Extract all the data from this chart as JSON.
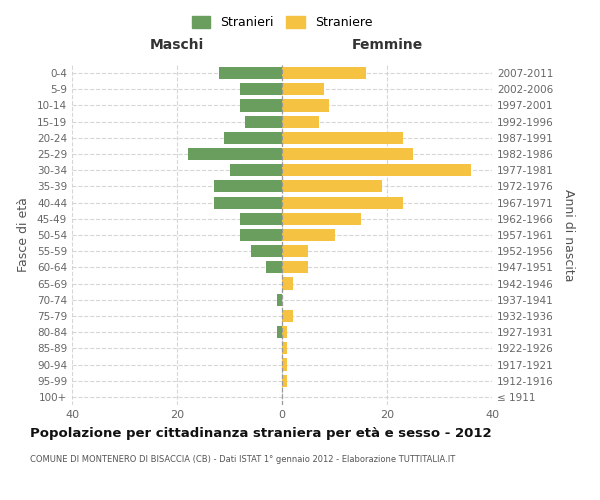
{
  "age_groups": [
    "100+",
    "95-99",
    "90-94",
    "85-89",
    "80-84",
    "75-79",
    "70-74",
    "65-69",
    "60-64",
    "55-59",
    "50-54",
    "45-49",
    "40-44",
    "35-39",
    "30-34",
    "25-29",
    "20-24",
    "15-19",
    "10-14",
    "5-9",
    "0-4"
  ],
  "birth_years": [
    "≤ 1911",
    "1912-1916",
    "1917-1921",
    "1922-1926",
    "1927-1931",
    "1932-1936",
    "1937-1941",
    "1942-1946",
    "1947-1951",
    "1952-1956",
    "1957-1961",
    "1962-1966",
    "1967-1971",
    "1972-1976",
    "1977-1981",
    "1982-1986",
    "1987-1991",
    "1992-1996",
    "1997-2001",
    "2002-2006",
    "2007-2011"
  ],
  "maschi": [
    0,
    0,
    0,
    0,
    1,
    0,
    1,
    0,
    3,
    6,
    8,
    8,
    13,
    13,
    10,
    18,
    11,
    7,
    8,
    8,
    12
  ],
  "femmine": [
    0,
    1,
    1,
    1,
    1,
    2,
    0,
    2,
    5,
    5,
    10,
    15,
    23,
    19,
    36,
    25,
    23,
    7,
    9,
    8,
    16
  ],
  "maschi_color": "#6a9e5e",
  "femmine_color": "#f5c242",
  "grid_color": "#cccccc",
  "center_line_color": "#999999",
  "title": "Popolazione per cittadinanza straniera per età e sesso - 2012",
  "subtitle": "COMUNE DI MONTENERO DI BISACCIA (CB) - Dati ISTAT 1° gennaio 2012 - Elaborazione TUTTITALIA.IT",
  "label_maschi": "Maschi",
  "label_femmine": "Femmine",
  "ylabel_left": "Fasce di età",
  "ylabel_right": "Anni di nascita",
  "legend_maschi": "Stranieri",
  "legend_femmine": "Straniere",
  "xlim": 40,
  "bar_height": 0.75,
  "tick_labels": [
    "40",
    "20",
    "0",
    "20",
    "40"
  ],
  "tick_vals": [
    -40,
    -20,
    0,
    20,
    40
  ]
}
